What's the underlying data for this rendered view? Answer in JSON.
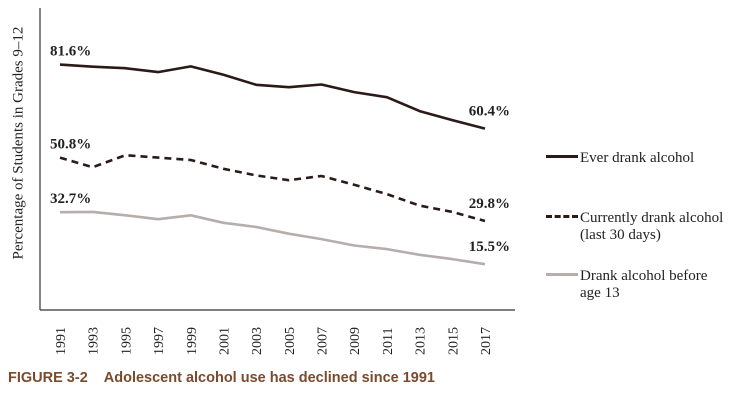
{
  "caption": {
    "figure_label": "FIGURE 3-2",
    "title": "Adolescent alcohol use has declined since 1991"
  },
  "colors": {
    "ever": "#2a1a18",
    "current": "#2a1a18",
    "before13": "#b5aeaa",
    "caption": "#7a4a2e",
    "axis": "#333333"
  },
  "chart_data": {
    "type": "line",
    "title": "Adolescent alcohol use has declined since 1991",
    "xlabel": "",
    "ylabel": "Percentage of Students in Grades 9–12",
    "ylim": [
      0,
      100
    ],
    "grid": false,
    "legend_placement": "right",
    "x": [
      "1991",
      "1993",
      "1995",
      "1997",
      "1999",
      "2001",
      "2003",
      "2005",
      "2007",
      "2009",
      "2011",
      "2013",
      "2015",
      "2017"
    ],
    "series": [
      {
        "name": "Ever drank alcohol",
        "style": "solid",
        "values": [
          81.6,
          80.9,
          80.4,
          79.1,
          81.0,
          78.2,
          74.9,
          74.1,
          75.0,
          72.5,
          70.8,
          66.2,
          63.2,
          60.4
        ],
        "start_label": "81.6%",
        "end_label": "60.4%"
      },
      {
        "name": "Currently drank alcohol (last 30 days)",
        "legend_lines": [
          "Currently drank alcohol",
          "(last 30 days)"
        ],
        "style": "dashed",
        "values": [
          50.8,
          47.6,
          51.6,
          50.8,
          50.0,
          47.1,
          44.9,
          43.3,
          44.7,
          41.8,
          38.7,
          34.9,
          32.8,
          29.8
        ],
        "start_label": "50.8%",
        "end_label": "29.8%"
      },
      {
        "name": "Drank alcohol before age 13",
        "legend_lines": [
          "Drank alcohol before",
          "age 13"
        ],
        "style": "gray",
        "values": [
          32.7,
          32.8,
          31.7,
          30.4,
          31.7,
          29.2,
          27.8,
          25.6,
          23.8,
          21.7,
          20.5,
          18.6,
          17.2,
          15.5
        ],
        "start_label": "32.7%",
        "end_label": "15.5%"
      }
    ]
  }
}
